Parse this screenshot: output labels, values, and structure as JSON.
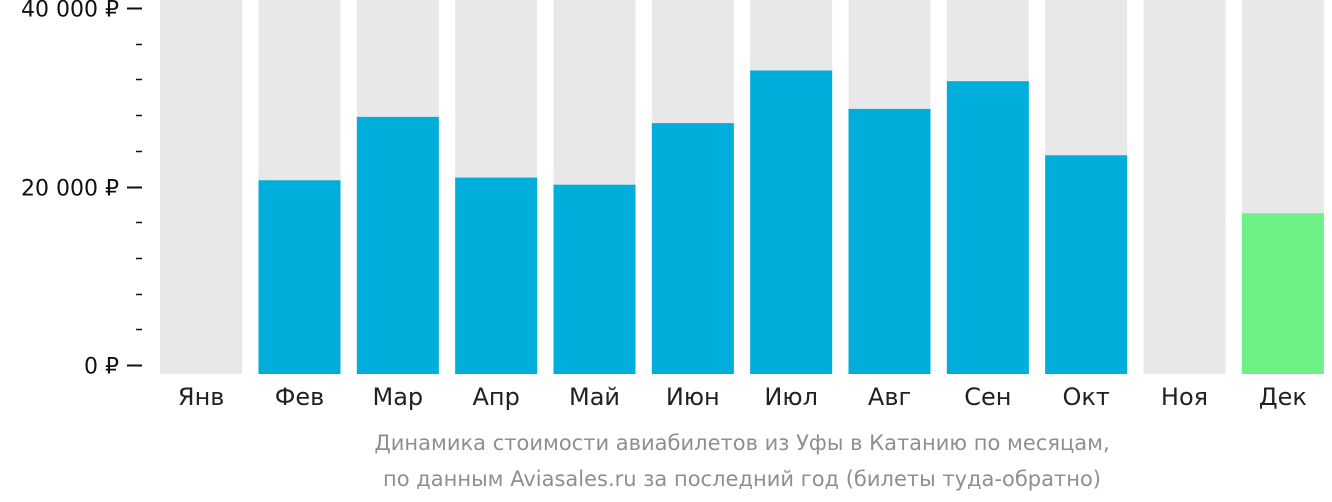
{
  "chart_data": {
    "type": "bar",
    "categories": [
      "Янв",
      "Фев",
      "Мар",
      "Апр",
      "Май",
      "Июн",
      "Июл",
      "Авг",
      "Сен",
      "Окт",
      "Ноя",
      "Дек"
    ],
    "values": [
      null,
      20700,
      27800,
      21000,
      20200,
      27100,
      33000,
      28700,
      31800,
      23500,
      null,
      17000
    ],
    "highlight_index": 11,
    "ylim": [
      0,
      40000
    ],
    "yticks": [
      0,
      20000,
      40000
    ],
    "ytick_labels": [
      "0 ₽",
      "20 000 ₽",
      "40 000 ₽"
    ],
    "minor_ytick_step": 4000,
    "xlabel": "",
    "ylabel": "",
    "title": "",
    "grid": false,
    "colors": {
      "bar": "#00AEDC",
      "highlight": "#6DF085",
      "track": "#E8E8E8",
      "axis": "#111111"
    }
  },
  "caption": {
    "line1": "Динамика стоимости авиабилетов из Уфы в Катанию по месяцам,",
    "line2": "по данным Aviasales.ru за последний год (билеты туда-обратно)"
  }
}
